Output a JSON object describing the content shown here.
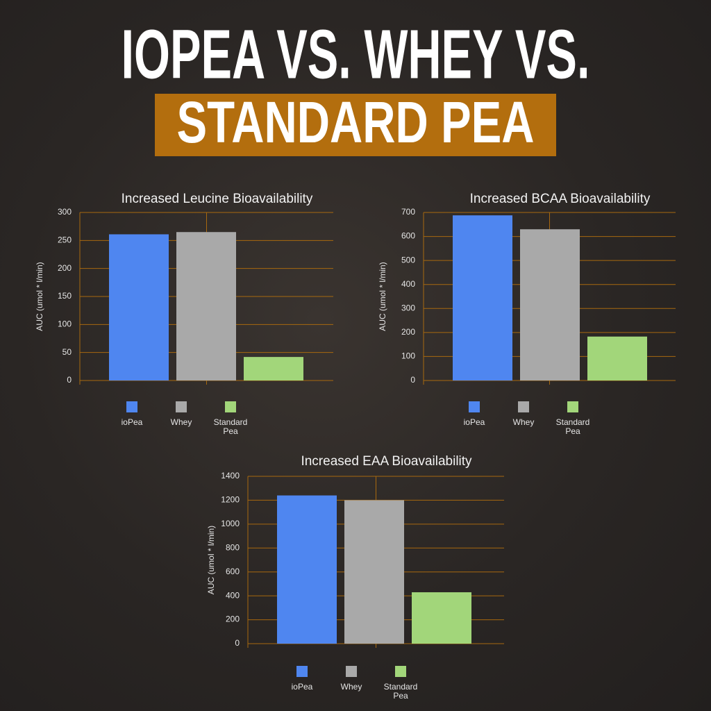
{
  "header": {
    "line1": "IOPEA VS. WHEY VS.",
    "line2": "STANDARD PEA"
  },
  "chart_data": [
    {
      "type": "bar",
      "title": "Increased Leucine Bioavailability",
      "y_label": "AUC (umol * l/min)",
      "series": [
        {
          "name": "ioPea",
          "color": "#4f86f0",
          "values": [
            261
          ]
        },
        {
          "name": "Whey",
          "color": "#a9a9a9",
          "values": [
            265
          ]
        },
        {
          "name": "Standard Pea",
          "color": "#a2d67a",
          "values": [
            42
          ]
        }
      ],
      "ylim": [
        0,
        300
      ],
      "yticks": [
        0,
        50,
        100,
        150,
        200,
        250,
        300
      ],
      "grid": true
    },
    {
      "type": "bar",
      "title": "Increased BCAA Bioavailability",
      "y_label": "AUC (umol * l/min)",
      "series": [
        {
          "name": "ioPea",
          "color": "#4f86f0",
          "values": [
            688
          ]
        },
        {
          "name": "Whey",
          "color": "#a9a9a9",
          "values": [
            630
          ]
        },
        {
          "name": "Standard Pea",
          "color": "#a2d67a",
          "values": [
            183
          ]
        }
      ],
      "ylim": [
        0,
        700
      ],
      "yticks": [
        0,
        100,
        200,
        300,
        400,
        500,
        600,
        700
      ],
      "grid": true
    },
    {
      "type": "bar",
      "title": "Increased EAA Bioavailability",
      "y_label": "AUC (umol * l/min)",
      "series": [
        {
          "name": "ioPea",
          "color": "#4f86f0",
          "values": [
            1240
          ]
        },
        {
          "name": "Whey",
          "color": "#a9a9a9",
          "values": [
            1200
          ]
        },
        {
          "name": "Standard Pea",
          "color": "#a2d67a",
          "values": [
            430
          ]
        }
      ],
      "ylim": [
        0,
        1400
      ],
      "yticks": [
        0,
        200,
        400,
        600,
        800,
        1000,
        1200,
        1400
      ],
      "grid": true
    }
  ]
}
